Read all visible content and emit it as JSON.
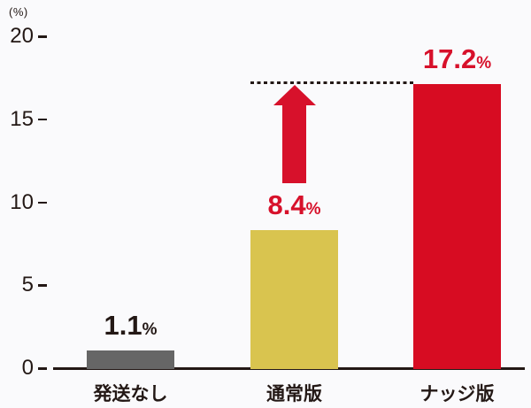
{
  "chart_data": {
    "type": "bar",
    "title": "",
    "xlabel": "",
    "ylabel": "(%)",
    "unit_label": "(%)",
    "categories": [
      "発送なし",
      "通常版",
      "ナッジ版"
    ],
    "values": [
      1.1,
      8.4,
      17.2
    ],
    "value_labels": [
      {
        "number": "1.1",
        "suffix": "%"
      },
      {
        "number": "8.4",
        "suffix": "%"
      },
      {
        "number": "17.2",
        "suffix": "%"
      }
    ],
    "bar_colors": [
      "#666666",
      "#d9c44f",
      "#d70c22"
    ],
    "value_label_colors": [
      "#231815",
      "#d7112b",
      "#d7112b"
    ],
    "y_ticks": [
      0,
      5,
      10,
      15,
      20
    ],
    "ylim": [
      0,
      20
    ],
    "grid": false,
    "legend": false,
    "annotations": {
      "dashed_reference_line": {
        "value": 17.2,
        "from_category": "通常版",
        "to_category": "ナッジ版",
        "color": "#231815"
      },
      "arrow": {
        "type": "up-arrow",
        "at_category": "通常版",
        "points_to_value": 17.2,
        "color": "#d7112b"
      }
    }
  },
  "colors": {
    "background": "#fafafc",
    "axis": "#231815",
    "text": "#231815"
  }
}
